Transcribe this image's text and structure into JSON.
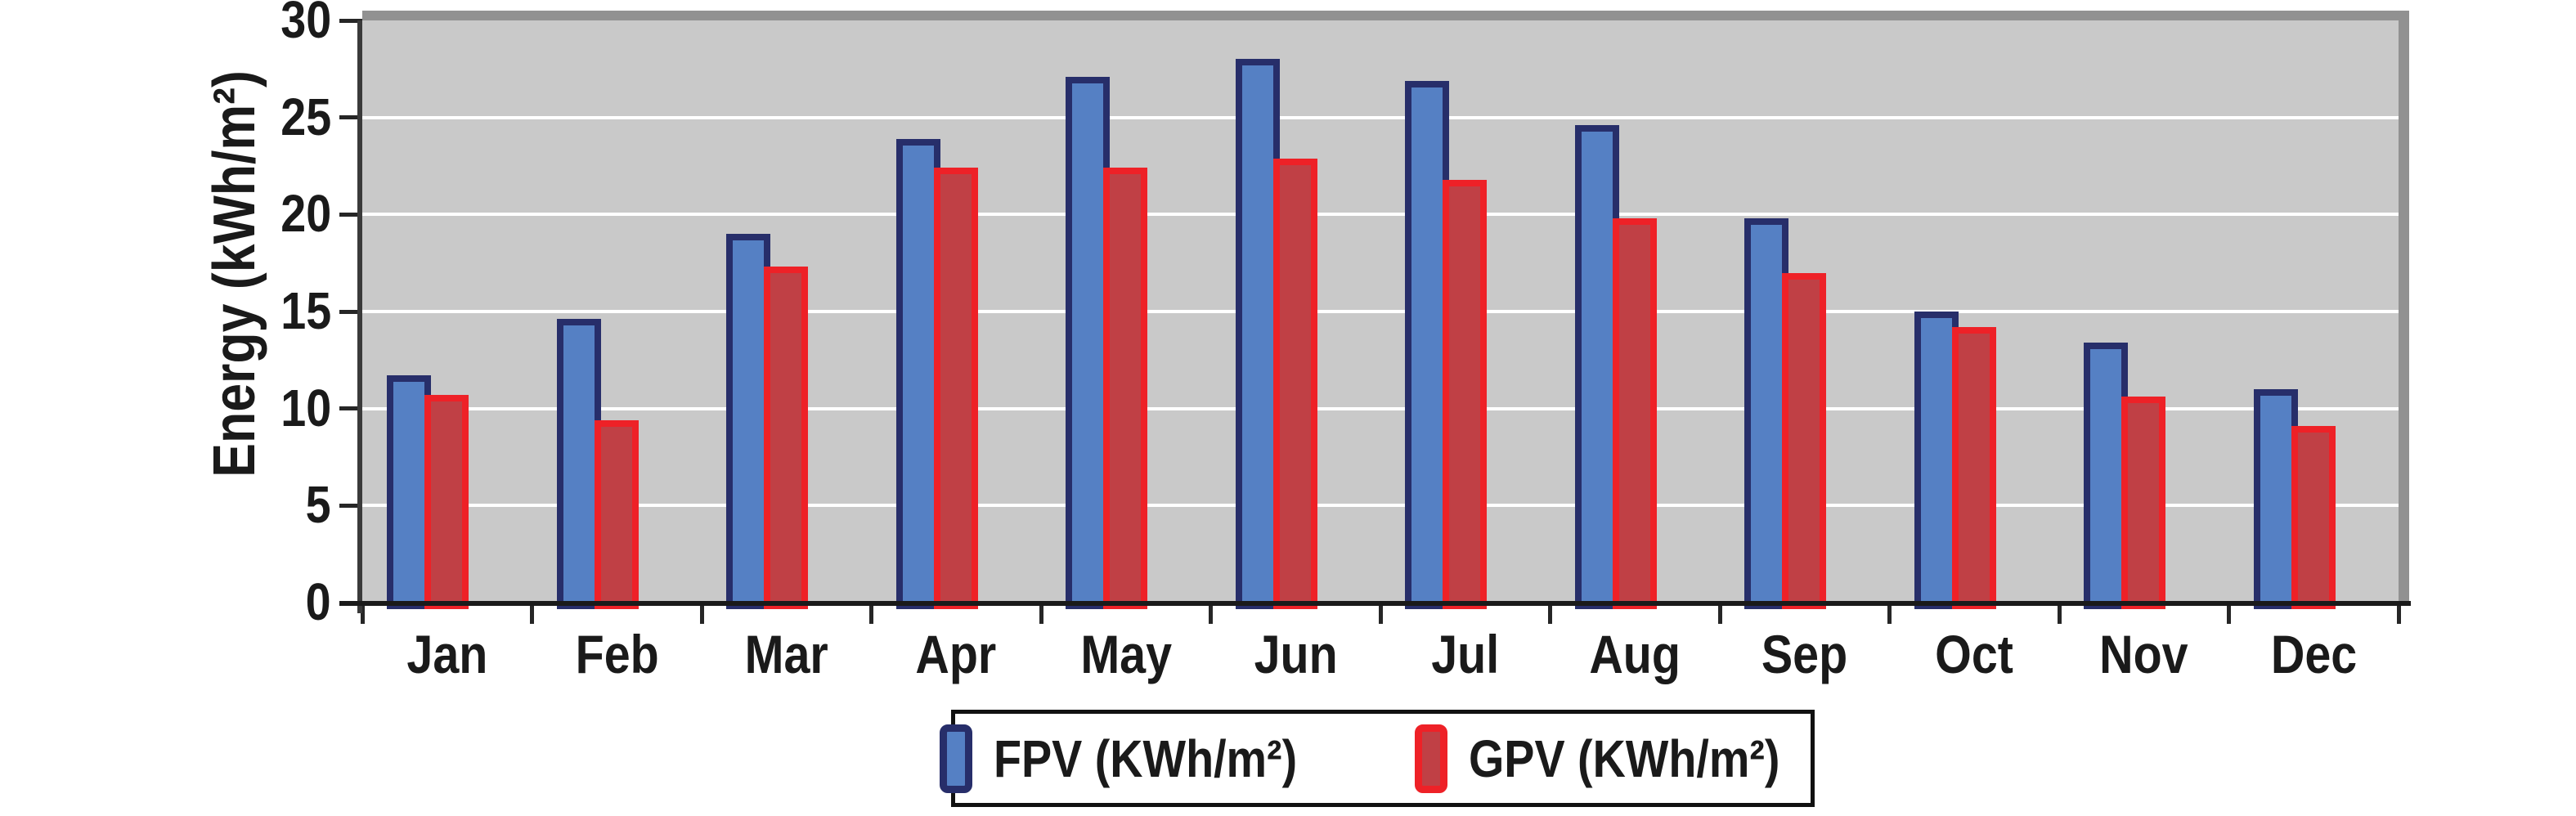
{
  "chart_data": {
    "type": "bar",
    "title": "",
    "categories": [
      "Jan",
      "Feb",
      "Mar",
      "Apr",
      "May",
      "Jun",
      "Jul",
      "Aug",
      "Sep",
      "Oct",
      "Nov",
      "Dec"
    ],
    "series": [
      {
        "name": "FPV (KWh/m²)",
        "fill_color": "#5580c4",
        "border_color": "#272e6a",
        "values": [
          11.7,
          14.6,
          19.0,
          23.9,
          27.1,
          28.0,
          26.9,
          24.6,
          19.8,
          15.0,
          13.4,
          11.0
        ]
      },
      {
        "name": "GPV (KWh/m²)",
        "fill_color": "#c04045",
        "border_color": "#ee2127",
        "values": [
          10.7,
          9.4,
          17.3,
          22.4,
          22.4,
          22.9,
          21.8,
          19.8,
          17.0,
          14.2,
          10.6,
          9.1
        ]
      }
    ],
    "xlabel": "",
    "ylabel": "Energy (kWh/m²)",
    "ylim": [
      0,
      30
    ],
    "yticks": [
      0,
      5,
      10,
      15,
      20,
      25,
      30
    ],
    "grid": "horizontal",
    "gridline_color": "#ffffff",
    "plot_background": "#c9c9c9",
    "legend_position": "bottom-center"
  }
}
